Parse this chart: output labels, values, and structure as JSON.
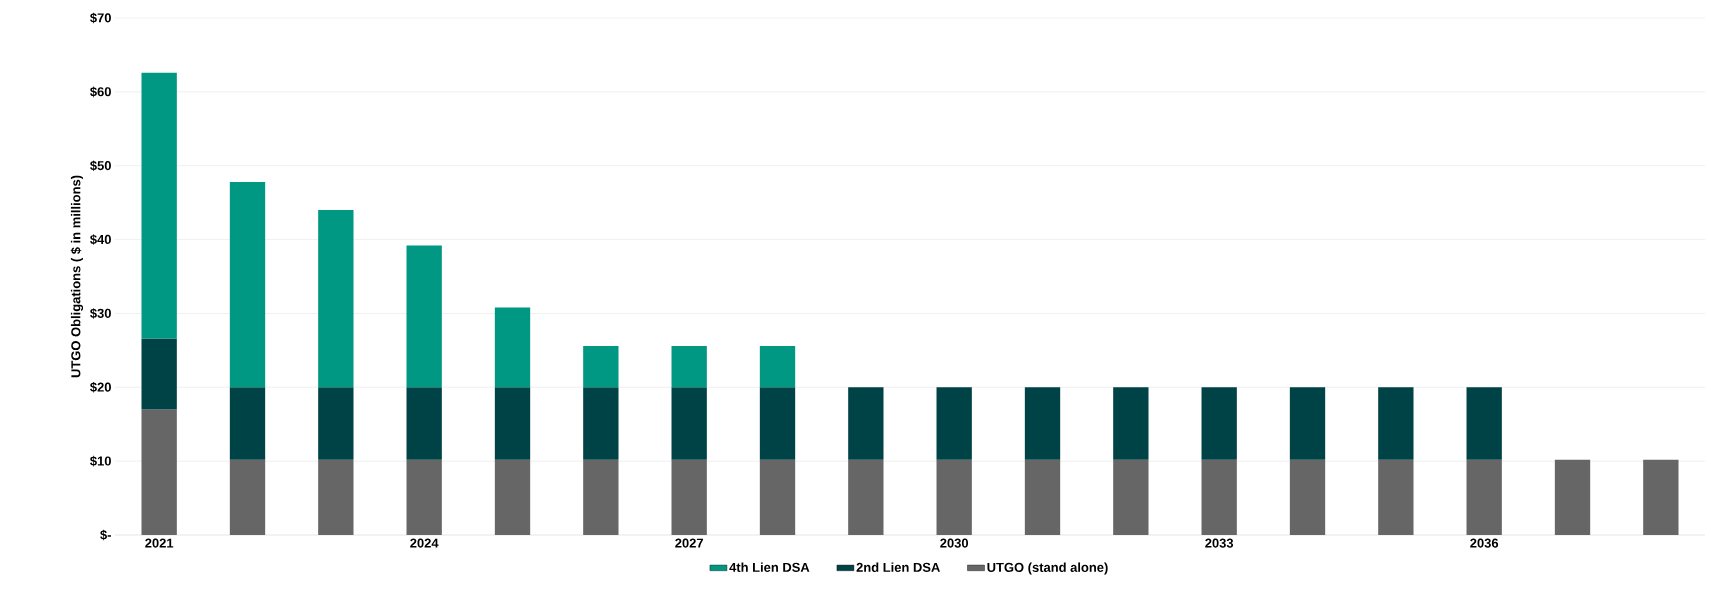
{
  "chart_data": {
    "type": "bar",
    "stacked": true,
    "ylabel": "UTGO Obligations ( $ in millions)",
    "categories": [
      "2021",
      null,
      null,
      "2024",
      null,
      null,
      "2027",
      null,
      null,
      "2030",
      null,
      null,
      "2033",
      null,
      null,
      "2036",
      null,
      null
    ],
    "series": [
      {
        "name": "UTGO  (stand alone)",
        "color": "#666666",
        "values": [
          17.0,
          10.2,
          10.2,
          10.2,
          10.2,
          10.2,
          10.2,
          10.2,
          10.2,
          10.2,
          10.2,
          10.2,
          10.2,
          10.2,
          10.2,
          10.2,
          10.2,
          10.2
        ]
      },
      {
        "name": "2nd Lien DSA",
        "color": "#004346",
        "values": [
          9.6,
          9.8,
          9.8,
          9.8,
          9.8,
          9.8,
          9.8,
          9.8,
          9.8,
          9.8,
          9.8,
          9.8,
          9.8,
          9.8,
          9.8,
          9.8,
          null,
          null
        ]
      },
      {
        "name": "4th Lien DSA",
        "color": "#009882",
        "values": [
          36.0,
          27.8,
          24.0,
          19.2,
          10.8,
          5.6,
          5.6,
          5.6,
          null,
          null,
          null,
          null,
          null,
          null,
          null,
          null,
          null,
          null
        ]
      }
    ],
    "ylim": [
      0,
      70
    ],
    "yticks": [
      {
        "value": 0,
        "label": "$-"
      },
      {
        "value": 10,
        "label": "$10"
      },
      {
        "value": 20,
        "label": "$20"
      },
      {
        "value": 30,
        "label": "$30"
      },
      {
        "value": 40,
        "label": "$40"
      },
      {
        "value": 50,
        "label": "$50"
      },
      {
        "value": 60,
        "label": "$60"
      },
      {
        "value": 70,
        "label": "$70"
      }
    ],
    "grid": "y",
    "legend": "bottom"
  }
}
